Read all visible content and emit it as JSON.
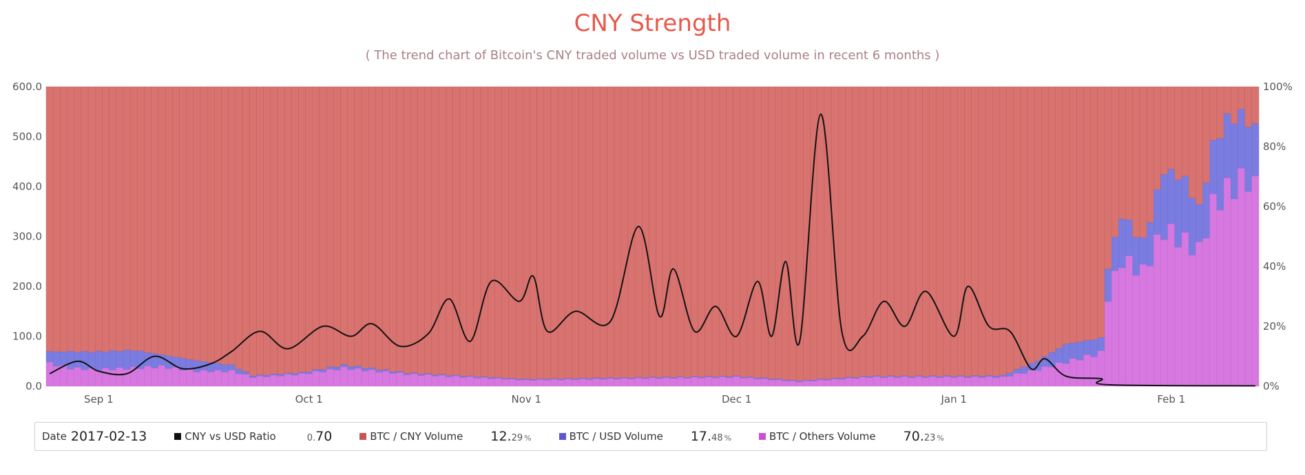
{
  "title": "CNY Strength",
  "subtitle": "( The trend chart of Bitcoin's CNY traded volume vs USD traded volume in recent 6 months )",
  "legend": {
    "date_label": "Date",
    "date_value": "2017-02-13",
    "items": [
      {
        "label": "CNY vs USD Ratio",
        "value_int": "0.",
        "value_dec": "70",
        "unit": "",
        "color": "#111111"
      },
      {
        "label": "BTC / CNY Volume",
        "value_int": "12.",
        "value_dec": "29",
        "unit": "%",
        "color": "#c75353"
      },
      {
        "label": "BTC / USD Volume",
        "value_int": "17.",
        "value_dec": "48",
        "unit": "%",
        "color": "#5b56d6"
      },
      {
        "label": "BTC / Others Volume",
        "value_int": "70.",
        "value_dec": "23",
        "unit": "%",
        "color": "#c84fd6"
      }
    ]
  },
  "chart_data": {
    "type": "bar",
    "title": "CNY Strength",
    "subtitle": "( The trend chart of Bitcoin's CNY traded volume vs USD traded volume in recent 6 months )",
    "x_range": [
      "2016-08-25",
      "2017-02-13"
    ],
    "x_ticks": [
      "Sep 1",
      "Oct 1",
      "Nov 1",
      "Dec 1",
      "Jan 1",
      "Feb 1"
    ],
    "x_tick_dates": [
      "2016-09-01",
      "2016-10-01",
      "2016-11-01",
      "2016-12-01",
      "2017-01-01",
      "2017-02-01"
    ],
    "y_left": {
      "ticks": [
        "0.0",
        "100.0",
        "200.0",
        "300.0",
        "400.0",
        "500.0",
        "600.0"
      ],
      "range": [
        0,
        600
      ]
    },
    "y_right": {
      "ticks": [
        "0%",
        "20%",
        "40%",
        "60%",
        "80%",
        "100%"
      ],
      "range": [
        0,
        100
      ]
    },
    "colors": {
      "cny": "#d87370",
      "usd": "#7b7ce0",
      "others": "#d678e0",
      "line": "#111111"
    },
    "series": [
      {
        "name": "BTC / CNY Volume",
        "kind": "stacked-percent-bar"
      },
      {
        "name": "BTC / USD Volume",
        "kind": "stacked-percent-bar"
      },
      {
        "name": "BTC / Others Volume",
        "kind": "stacked-percent-bar"
      },
      {
        "name": "CNY vs USD Ratio",
        "kind": "line",
        "axis": "left"
      }
    ],
    "stack_points": [
      {
        "date": "2016-08-25",
        "others": 7.5,
        "usd": 4.0
      },
      {
        "date": "2016-08-28",
        "others": 6.0,
        "usd": 5.5
      },
      {
        "date": "2016-09-01",
        "others": 5.5,
        "usd": 6.0
      },
      {
        "date": "2016-09-06",
        "others": 6.0,
        "usd": 6.0
      },
      {
        "date": "2016-09-10",
        "others": 6.5,
        "usd": 4.0
      },
      {
        "date": "2016-09-15",
        "others": 5.0,
        "usd": 3.5
      },
      {
        "date": "2016-09-20",
        "others": 5.0,
        "usd": 2.0
      },
      {
        "date": "2016-09-23",
        "others": 3.0,
        "usd": 0.5
      },
      {
        "date": "2016-09-30",
        "others": 4.0,
        "usd": 0.5
      },
      {
        "date": "2016-10-06",
        "others": 6.0,
        "usd": 1.0
      },
      {
        "date": "2016-10-15",
        "others": 4.0,
        "usd": 0.4
      },
      {
        "date": "2016-11-01",
        "others": 2.0,
        "usd": 0.3
      },
      {
        "date": "2016-11-15",
        "others": 2.5,
        "usd": 0.3
      },
      {
        "date": "2016-12-01",
        "others": 3.0,
        "usd": 0.3
      },
      {
        "date": "2016-12-10",
        "others": 1.5,
        "usd": 0.3
      },
      {
        "date": "2016-12-20",
        "others": 3.0,
        "usd": 0.3
      },
      {
        "date": "2017-01-01",
        "others": 3.0,
        "usd": 0.3
      },
      {
        "date": "2017-01-08",
        "others": 3.0,
        "usd": 0.5
      },
      {
        "date": "2017-01-13",
        "others": 5.5,
        "usd": 3.0
      },
      {
        "date": "2017-01-17",
        "others": 8.0,
        "usd": 6.0
      },
      {
        "date": "2017-01-22",
        "others": 11.0,
        "usd": 5.0
      },
      {
        "date": "2017-01-23",
        "others": 30.0,
        "usd": 10.0
      },
      {
        "date": "2017-01-25",
        "others": 42.0,
        "usd": 15.0
      },
      {
        "date": "2017-01-28",
        "others": 38.0,
        "usd": 10.0
      },
      {
        "date": "2017-01-31",
        "others": 52.0,
        "usd": 20.0
      },
      {
        "date": "2017-02-03",
        "others": 48.0,
        "usd": 21.0
      },
      {
        "date": "2017-02-05",
        "others": 45.0,
        "usd": 14.0
      },
      {
        "date": "2017-02-07",
        "others": 60.0,
        "usd": 20.0
      },
      {
        "date": "2017-02-09",
        "others": 65.0,
        "usd": 24.0
      },
      {
        "date": "2017-02-11",
        "others": 68.0,
        "usd": 22.0
      },
      {
        "date": "2017-02-13",
        "others": 70.23,
        "usd": 17.48
      }
    ],
    "ratio_line": [
      {
        "date": "2016-08-25",
        "value": 25
      },
      {
        "date": "2016-08-29",
        "value": 50
      },
      {
        "date": "2016-09-01",
        "value": 30
      },
      {
        "date": "2016-09-05",
        "value": 25
      },
      {
        "date": "2016-09-09",
        "value": 60
      },
      {
        "date": "2016-09-13",
        "value": 35
      },
      {
        "date": "2016-09-17",
        "value": 45
      },
      {
        "date": "2016-09-20",
        "value": 70
      },
      {
        "date": "2016-09-24",
        "value": 110
      },
      {
        "date": "2016-09-28",
        "value": 75
      },
      {
        "date": "2016-10-03",
        "value": 120
      },
      {
        "date": "2016-10-07",
        "value": 100
      },
      {
        "date": "2016-10-10",
        "value": 125
      },
      {
        "date": "2016-10-14",
        "value": 80
      },
      {
        "date": "2016-10-18",
        "value": 105
      },
      {
        "date": "2016-10-21",
        "value": 175
      },
      {
        "date": "2016-10-24",
        "value": 90
      },
      {
        "date": "2016-10-27",
        "value": 210
      },
      {
        "date": "2016-10-31",
        "value": 170
      },
      {
        "date": "2016-11-02",
        "value": 220
      },
      {
        "date": "2016-11-04",
        "value": 110
      },
      {
        "date": "2016-11-08",
        "value": 150
      },
      {
        "date": "2016-11-13",
        "value": 130
      },
      {
        "date": "2016-11-17",
        "value": 320
      },
      {
        "date": "2016-11-20",
        "value": 140
      },
      {
        "date": "2016-11-22",
        "value": 235
      },
      {
        "date": "2016-11-25",
        "value": 110
      },
      {
        "date": "2016-11-28",
        "value": 160
      },
      {
        "date": "2016-12-01",
        "value": 100
      },
      {
        "date": "2016-12-04",
        "value": 210
      },
      {
        "date": "2016-12-06",
        "value": 100
      },
      {
        "date": "2016-12-08",
        "value": 250
      },
      {
        "date": "2016-12-10",
        "value": 90
      },
      {
        "date": "2016-12-13",
        "value": 545
      },
      {
        "date": "2016-12-16",
        "value": 110
      },
      {
        "date": "2016-12-19",
        "value": 100
      },
      {
        "date": "2016-12-22",
        "value": 170
      },
      {
        "date": "2016-12-25",
        "value": 120
      },
      {
        "date": "2016-12-28",
        "value": 190
      },
      {
        "date": "2017-01-01",
        "value": 100
      },
      {
        "date": "2017-01-03",
        "value": 200
      },
      {
        "date": "2017-01-06",
        "value": 120
      },
      {
        "date": "2017-01-09",
        "value": 110
      },
      {
        "date": "2017-01-12",
        "value": 35
      },
      {
        "date": "2017-01-14",
        "value": 55
      },
      {
        "date": "2017-01-17",
        "value": 20
      },
      {
        "date": "2017-01-22",
        "value": 15
      },
      {
        "date": "2017-01-23",
        "value": 3
      },
      {
        "date": "2017-02-13",
        "value": 0.7
      }
    ]
  }
}
